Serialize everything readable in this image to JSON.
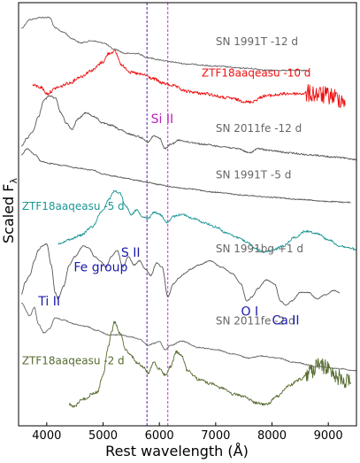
{
  "chart_data": {
    "type": "line",
    "xlabel": "Rest wavelength (Å)",
    "ylabel": "Scaled F",
    "ylabel_subscript": "λ",
    "xlim": [
      3500,
      9500
    ],
    "xticks": [
      4000,
      5000,
      6000,
      7000,
      8000,
      9000
    ],
    "xtick_labels": [
      "4000",
      "5000",
      "6000",
      "7000",
      "8000",
      "9000"
    ],
    "ylim": [
      0,
      1
    ],
    "vertical_lines": [
      {
        "x": 5780,
        "color": "#5a1fa8"
      },
      {
        "x": 6150,
        "color": "#dd22dd"
      }
    ],
    "series": [
      {
        "name": "SN 1991T -12 d",
        "color": "#666666",
        "noise": 0.5,
        "x0": 3550,
        "x1": 8650,
        "points": [
          [
            3550,
            0.06
          ],
          [
            3700,
            0.04
          ],
          [
            3900,
            0.035
          ],
          [
            4050,
            0.035
          ],
          [
            4150,
            0.06
          ],
          [
            4300,
            0.07
          ],
          [
            4450,
            0.085
          ],
          [
            4600,
            0.095
          ],
          [
            4800,
            0.09
          ],
          [
            5000,
            0.095
          ],
          [
            5200,
            0.11
          ],
          [
            5400,
            0.12
          ],
          [
            5600,
            0.12
          ],
          [
            5800,
            0.13
          ],
          [
            6000,
            0.135
          ],
          [
            6200,
            0.14
          ],
          [
            6500,
            0.145
          ],
          [
            7000,
            0.15
          ],
          [
            7500,
            0.155
          ],
          [
            8000,
            0.16
          ],
          [
            8650,
            0.16
          ]
        ]
      },
      {
        "name": "ZTF18aaqeasu -10 d",
        "color": "#ee1111",
        "noise": 1.2,
        "x0": 3750,
        "x1": 9300,
        "points": [
          [
            3750,
            0.195
          ],
          [
            3900,
            0.2
          ],
          [
            4000,
            0.215
          ],
          [
            4200,
            0.2
          ],
          [
            4400,
            0.19
          ],
          [
            4600,
            0.175
          ],
          [
            4800,
            0.16
          ],
          [
            5000,
            0.14
          ],
          [
            5100,
            0.12
          ],
          [
            5200,
            0.115
          ],
          [
            5350,
            0.15
          ],
          [
            5500,
            0.165
          ],
          [
            5700,
            0.17
          ],
          [
            5900,
            0.18
          ],
          [
            6050,
            0.19
          ],
          [
            6200,
            0.195
          ],
          [
            6500,
            0.21
          ],
          [
            6800,
            0.215
          ],
          [
            7200,
            0.225
          ],
          [
            7600,
            0.235
          ],
          [
            7900,
            0.22
          ],
          [
            8300,
            0.215
          ],
          [
            8700,
            0.215
          ],
          [
            9000,
            0.22
          ],
          [
            9300,
            0.23
          ]
        ]
      },
      {
        "name": "SN 2011fe -12 d",
        "color": "#555555",
        "noise": 0.6,
        "x0": 3550,
        "x1": 9500,
        "points": [
          [
            3550,
            0.34
          ],
          [
            3650,
            0.32
          ],
          [
            3750,
            0.305
          ],
          [
            3850,
            0.27
          ],
          [
            3950,
            0.23
          ],
          [
            4050,
            0.22
          ],
          [
            4150,
            0.225
          ],
          [
            4250,
            0.26
          ],
          [
            4350,
            0.285
          ],
          [
            4450,
            0.3
          ],
          [
            4550,
            0.275
          ],
          [
            4700,
            0.26
          ],
          [
            4850,
            0.27
          ],
          [
            5000,
            0.285
          ],
          [
            5150,
            0.29
          ],
          [
            5300,
            0.3
          ],
          [
            5450,
            0.31
          ],
          [
            5600,
            0.315
          ],
          [
            5700,
            0.32
          ],
          [
            5800,
            0.33
          ],
          [
            5900,
            0.315
          ],
          [
            6000,
            0.32
          ],
          [
            6100,
            0.345
          ],
          [
            6200,
            0.335
          ],
          [
            6350,
            0.325
          ],
          [
            6550,
            0.33
          ],
          [
            6800,
            0.335
          ],
          [
            7100,
            0.34
          ],
          [
            7400,
            0.345
          ],
          [
            7600,
            0.355
          ],
          [
            7750,
            0.345
          ],
          [
            8000,
            0.35
          ],
          [
            8300,
            0.355
          ],
          [
            8700,
            0.36
          ],
          [
            9100,
            0.365
          ],
          [
            9500,
            0.37
          ]
        ]
      },
      {
        "name": "SN 1991T -5 d",
        "color": "#555555",
        "noise": 0.4,
        "x0": 3550,
        "x1": 9400,
        "points": [
          [
            3550,
            0.36
          ],
          [
            3650,
            0.345
          ],
          [
            3800,
            0.36
          ],
          [
            3900,
            0.375
          ],
          [
            4050,
            0.38
          ],
          [
            4300,
            0.385
          ],
          [
            4500,
            0.39
          ],
          [
            4800,
            0.395
          ],
          [
            5000,
            0.405
          ],
          [
            5200,
            0.41
          ],
          [
            5400,
            0.415
          ],
          [
            5600,
            0.42
          ],
          [
            5800,
            0.425
          ],
          [
            6000,
            0.43
          ],
          [
            6200,
            0.435
          ],
          [
            6500,
            0.44
          ],
          [
            7000,
            0.448
          ],
          [
            7500,
            0.455
          ],
          [
            8000,
            0.46
          ],
          [
            8500,
            0.465
          ],
          [
            9000,
            0.47
          ],
          [
            9400,
            0.472
          ]
        ]
      },
      {
        "name": "ZTF18aaqeasu -5 d",
        "color": "#1a9595",
        "noise": 0.8,
        "x0": 4200,
        "x1": 9500,
        "points": [
          [
            4200,
            0.57
          ],
          [
            4400,
            0.56
          ],
          [
            4600,
            0.55
          ],
          [
            4800,
            0.53
          ],
          [
            5000,
            0.49
          ],
          [
            5100,
            0.465
          ],
          [
            5200,
            0.445
          ],
          [
            5300,
            0.45
          ],
          [
            5400,
            0.48
          ],
          [
            5500,
            0.5
          ],
          [
            5600,
            0.49
          ],
          [
            5700,
            0.505
          ],
          [
            5800,
            0.51
          ],
          [
            5900,
            0.495
          ],
          [
            6000,
            0.5
          ],
          [
            6150,
            0.52
          ],
          [
            6250,
            0.505
          ],
          [
            6400,
            0.5
          ],
          [
            6600,
            0.51
          ],
          [
            6800,
            0.52
          ],
          [
            7000,
            0.53
          ],
          [
            7200,
            0.545
          ],
          [
            7400,
            0.555
          ],
          [
            7550,
            0.565
          ],
          [
            7700,
            0.58
          ],
          [
            7850,
            0.59
          ],
          [
            8000,
            0.585
          ],
          [
            8200,
            0.575
          ],
          [
            8400,
            0.555
          ],
          [
            8600,
            0.54
          ],
          [
            8800,
            0.545
          ],
          [
            9000,
            0.56
          ],
          [
            9200,
            0.575
          ],
          [
            9400,
            0.58
          ],
          [
            9500,
            0.585
          ]
        ]
      },
      {
        "name": "SN 1991bg +1 d",
        "color": "#555555",
        "noise": 0.35,
        "x0": 3550,
        "x1": 9200,
        "points": [
          [
            3550,
            0.69
          ],
          [
            3620,
            0.66
          ],
          [
            3700,
            0.645
          ],
          [
            3780,
            0.61
          ],
          [
            3850,
            0.585
          ],
          [
            3920,
            0.575
          ],
          [
            4000,
            0.57
          ],
          [
            4080,
            0.62
          ],
          [
            4150,
            0.685
          ],
          [
            4200,
            0.7
          ],
          [
            4300,
            0.67
          ],
          [
            4400,
            0.62
          ],
          [
            4500,
            0.6
          ],
          [
            4650,
            0.575
          ],
          [
            4750,
            0.58
          ],
          [
            4850,
            0.6
          ],
          [
            4950,
            0.61
          ],
          [
            5050,
            0.625
          ],
          [
            5150,
            0.6
          ],
          [
            5250,
            0.585
          ],
          [
            5350,
            0.625
          ],
          [
            5450,
            0.6
          ],
          [
            5550,
            0.62
          ],
          [
            5650,
            0.61
          ],
          [
            5750,
            0.63
          ],
          [
            5850,
            0.645
          ],
          [
            5950,
            0.615
          ],
          [
            6050,
            0.625
          ],
          [
            6150,
            0.695
          ],
          [
            6250,
            0.665
          ],
          [
            6350,
            0.65
          ],
          [
            6450,
            0.64
          ],
          [
            6550,
            0.63
          ],
          [
            6700,
            0.62
          ],
          [
            6900,
            0.61
          ],
          [
            7100,
            0.625
          ],
          [
            7300,
            0.64
          ],
          [
            7450,
            0.665
          ],
          [
            7550,
            0.705
          ],
          [
            7650,
            0.695
          ],
          [
            7750,
            0.675
          ],
          [
            7900,
            0.655
          ],
          [
            8050,
            0.665
          ],
          [
            8150,
            0.705
          ],
          [
            8250,
            0.715
          ],
          [
            8350,
            0.705
          ],
          [
            8500,
            0.685
          ],
          [
            8650,
            0.685
          ],
          [
            8800,
            0.7
          ],
          [
            8950,
            0.69
          ],
          [
            9100,
            0.68
          ],
          [
            9200,
            0.685
          ]
        ]
      },
      {
        "name": "SN 2011fe -2 d",
        "color": "#666666",
        "noise": 0.4,
        "x0": 3550,
        "x1": 9500,
        "points": [
          [
            3550,
            0.71
          ],
          [
            3700,
            0.74
          ],
          [
            3780,
            0.72
          ],
          [
            3850,
            0.76
          ],
          [
            3950,
            0.78
          ],
          [
            4050,
            0.77
          ],
          [
            4150,
            0.745
          ],
          [
            4300,
            0.75
          ],
          [
            4500,
            0.76
          ],
          [
            4700,
            0.765
          ],
          [
            4900,
            0.775
          ],
          [
            5100,
            0.785
          ],
          [
            5300,
            0.785
          ],
          [
            5500,
            0.79
          ],
          [
            5650,
            0.795
          ],
          [
            5800,
            0.81
          ],
          [
            5900,
            0.805
          ],
          [
            6000,
            0.8
          ],
          [
            6100,
            0.82
          ],
          [
            6200,
            0.81
          ],
          [
            6400,
            0.8
          ],
          [
            6700,
            0.815
          ],
          [
            7000,
            0.82
          ],
          [
            7300,
            0.83
          ],
          [
            7600,
            0.84
          ],
          [
            7800,
            0.835
          ],
          [
            8100,
            0.84
          ],
          [
            8400,
            0.85
          ],
          [
            8800,
            0.86
          ],
          [
            9200,
            0.865
          ],
          [
            9500,
            0.87
          ]
        ]
      },
      {
        "name": "ZTF18aaqeasu -2 d",
        "color": "#556b2f",
        "noise": 1.1,
        "x0": 4400,
        "x1": 9400,
        "points": [
          [
            4400,
            0.95
          ],
          [
            4500,
            0.955
          ],
          [
            4600,
            0.94
          ],
          [
            4700,
            0.935
          ],
          [
            4800,
            0.925
          ],
          [
            4900,
            0.92
          ],
          [
            5000,
            0.88
          ],
          [
            5100,
            0.81
          ],
          [
            5150,
            0.78
          ],
          [
            5200,
            0.755
          ],
          [
            5300,
            0.78
          ],
          [
            5400,
            0.82
          ],
          [
            5500,
            0.835
          ],
          [
            5600,
            0.85
          ],
          [
            5700,
            0.86
          ],
          [
            5800,
            0.875
          ],
          [
            5900,
            0.85
          ],
          [
            6000,
            0.865
          ],
          [
            6100,
            0.88
          ],
          [
            6200,
            0.86
          ],
          [
            6300,
            0.825
          ],
          [
            6400,
            0.835
          ],
          [
            6500,
            0.87
          ],
          [
            6700,
            0.89
          ],
          [
            6900,
            0.9
          ],
          [
            7100,
            0.91
          ],
          [
            7300,
            0.925
          ],
          [
            7500,
            0.93
          ],
          [
            7700,
            0.945
          ],
          [
            7900,
            0.95
          ],
          [
            8100,
            0.93
          ],
          [
            8300,
            0.905
          ],
          [
            8500,
            0.89
          ],
          [
            8700,
            0.87
          ],
          [
            8850,
            0.855
          ],
          [
            9000,
            0.865
          ],
          [
            9200,
            0.885
          ],
          [
            9400,
            0.9
          ]
        ]
      }
    ],
    "series_labels": [
      {
        "text": "SN 1991T -12 d",
        "color": "#666666",
        "x": 7000,
        "y": 0.1
      },
      {
        "text": "ZTF18aaqeasu -10 d",
        "color": "#ee1111",
        "x": 6750,
        "y": 0.175
      },
      {
        "text": "SN 2011fe -12 d",
        "color": "#666666",
        "x": 7000,
        "y": 0.305
      },
      {
        "text": "SN 1991T -5 d",
        "color": "#666666",
        "x": 7000,
        "y": 0.415
      },
      {
        "text": "ZTF18aaqeasu -5 d",
        "color": "#1a9595",
        "x": 3560,
        "y": 0.49
      },
      {
        "text": "SN 1991bg +1 d",
        "color": "#666666",
        "x": 7000,
        "y": 0.59
      },
      {
        "text": "SN 2011fe -2 d",
        "color": "#666666",
        "x": 7000,
        "y": 0.76
      },
      {
        "text": "ZTF18aaqeasu -2 d",
        "color": "#556b2f",
        "x": 3560,
        "y": 0.855
      }
    ],
    "annotations": [
      {
        "text": "Si II",
        "color": "#bb22bb",
        "x": 5850,
        "y": 0.285
      },
      {
        "text": "Fe group",
        "color": "#1a1aaa",
        "x": 4480,
        "y": 0.635
      },
      {
        "text": "S II",
        "color": "#1a1aaa",
        "x": 5320,
        "y": 0.6
      },
      {
        "text": "Ti II",
        "color": "#1a1aaa",
        "x": 3850,
        "y": 0.715
      },
      {
        "text": "O I",
        "color": "#1a1aaa",
        "x": 7450,
        "y": 0.74
      },
      {
        "text": "Ca II",
        "color": "#1a1aaa",
        "x": 8000,
        "y": 0.76
      }
    ]
  }
}
